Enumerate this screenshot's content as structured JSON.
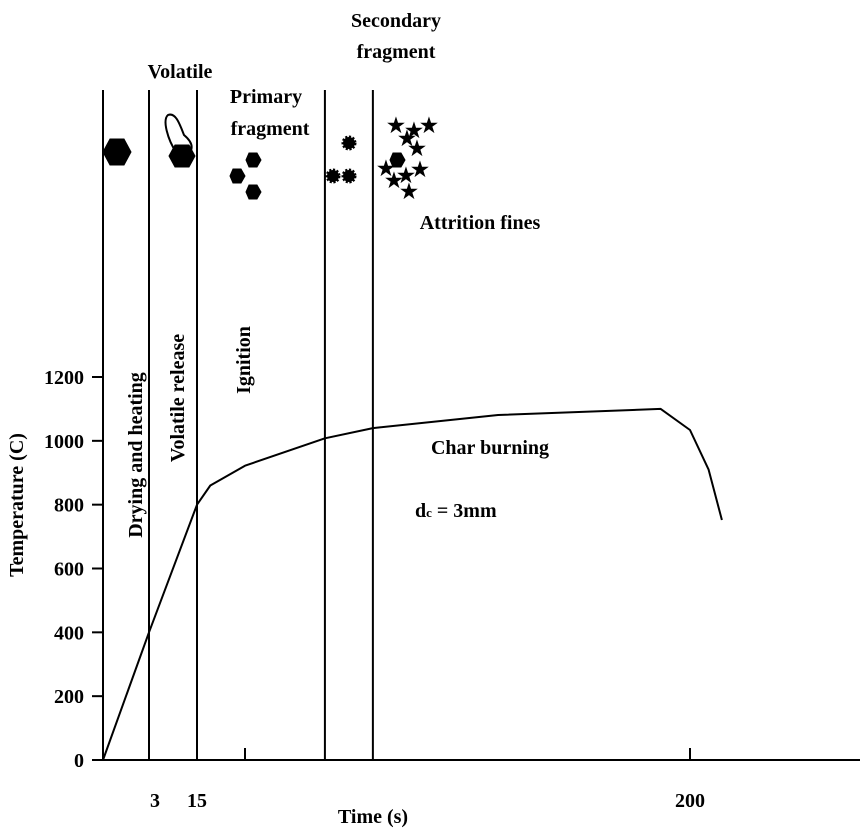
{
  "chart_data": {
    "type": "line",
    "xlabel": "Time (s)",
    "ylabel": "Temperature (C)",
    "x": [
      0,
      3,
      15,
      20,
      33,
      63,
      81,
      128,
      189,
      200,
      207,
      212
    ],
    "series": [
      {
        "color": "#000000",
        "values": [
          0,
          400,
          800,
          860,
          922,
          1008,
          1040,
          1081,
          1100,
          1034,
          910,
          752
        ]
      }
    ],
    "xlim": [
      0,
      264
    ],
    "xticks": [
      3,
      15,
      200
    ],
    "ylim": [
      0,
      1200
    ],
    "yticks": [
      0,
      200,
      400,
      600,
      800,
      1000,
      1200
    ],
    "phase_lines": [
      3,
      15,
      63,
      81
    ],
    "annotations": {
      "volatile": "Volatile",
      "primary_fragment": [
        "Primary",
        "fragment"
      ],
      "secondary_fragment": [
        "Secondary",
        "fragment"
      ],
      "attrition_fines": "Attrition fines",
      "drying": "Drying and heating",
      "volatile_release": "Volatile release",
      "ignition": "Ignition",
      "char_burning": "Char burning",
      "diameter": [
        "d",
        "c",
        " = 3mm"
      ]
    }
  }
}
